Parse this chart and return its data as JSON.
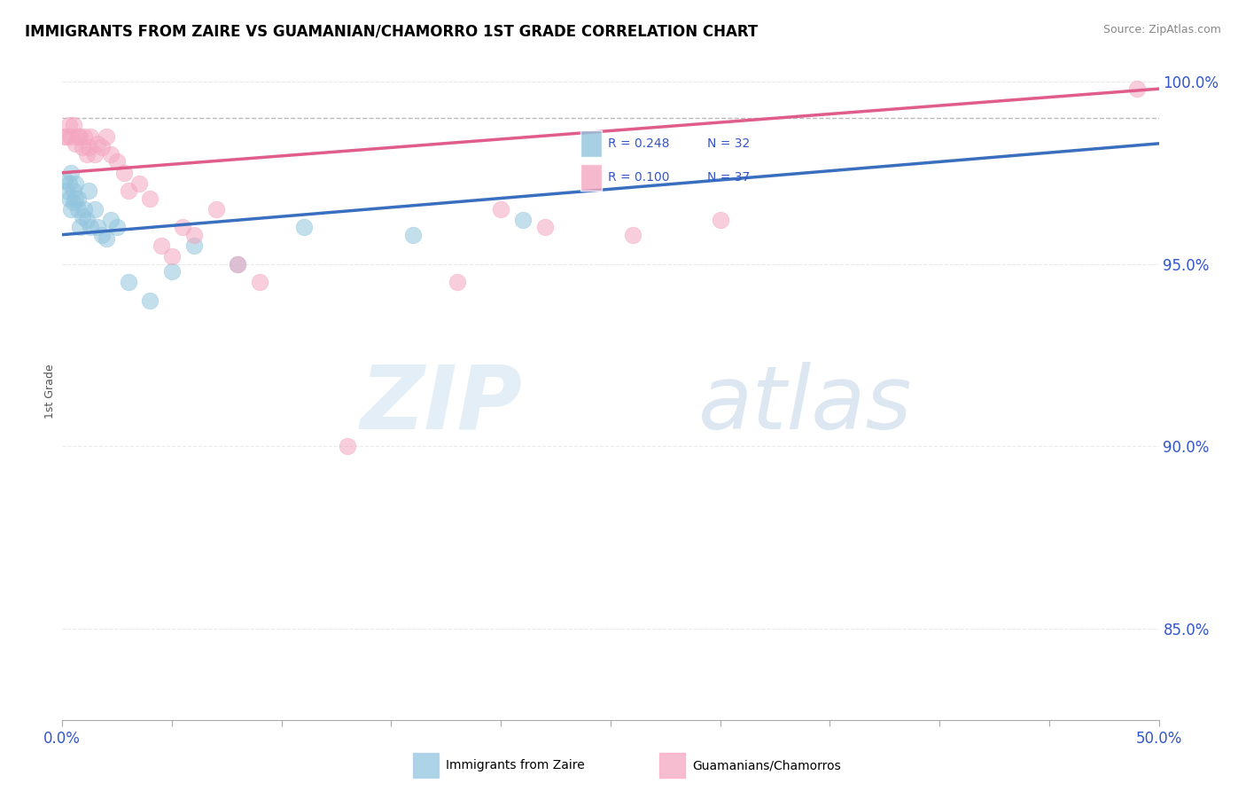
{
  "title": "IMMIGRANTS FROM ZAIRE VS GUAMANIAN/CHAMORRO 1ST GRADE CORRELATION CHART",
  "source_text": "Source: ZipAtlas.com",
  "ylabel": "1st Grade",
  "xlim": [
    0.0,
    0.5
  ],
  "ylim": [
    0.825,
    1.005
  ],
  "xticks": [
    0.0,
    0.05,
    0.1,
    0.15,
    0.2,
    0.25,
    0.3,
    0.35,
    0.4,
    0.45,
    0.5
  ],
  "xticklabels": [
    "0.0%",
    "",
    "",
    "",
    "",
    "",
    "",
    "",
    "",
    "",
    "50.0%"
  ],
  "yticks": [
    0.85,
    0.9,
    0.95,
    1.0
  ],
  "yticklabels": [
    "85.0%",
    "90.0%",
    "95.0%",
    "100.0%"
  ],
  "blue_color": "#92c5de",
  "pink_color": "#f4a6c0",
  "blue_line_color": "#3a6fbf",
  "pink_line_color": "#e05c8a",
  "R_blue": 0.248,
  "N_blue": 32,
  "R_pink": 0.1,
  "N_pink": 37,
  "legend_label_blue": "Immigrants from Zaire",
  "legend_label_pink": "Guamanians/Chamorros",
  "watermark_zip": "ZIP",
  "watermark_atlas": "atlas",
  "dashed_line_y": 0.99,
  "blue_scatter_x": [
    0.001,
    0.002,
    0.003,
    0.003,
    0.004,
    0.004,
    0.005,
    0.005,
    0.006,
    0.006,
    0.007,
    0.007,
    0.008,
    0.009,
    0.01,
    0.011,
    0.012,
    0.013,
    0.015,
    0.016,
    0.018,
    0.02,
    0.022,
    0.025,
    0.03,
    0.04,
    0.05,
    0.06,
    0.08,
    0.11,
    0.16,
    0.21
  ],
  "blue_scatter_y": [
    0.973,
    0.97,
    0.972,
    0.968,
    0.975,
    0.965,
    0.97,
    0.967,
    0.972,
    0.968,
    0.965,
    0.968,
    0.96,
    0.963,
    0.965,
    0.962,
    0.97,
    0.96,
    0.965,
    0.96,
    0.958,
    0.957,
    0.962,
    0.96,
    0.945,
    0.94,
    0.948,
    0.955,
    0.95,
    0.96,
    0.958,
    0.962
  ],
  "pink_scatter_x": [
    0.001,
    0.002,
    0.003,
    0.004,
    0.005,
    0.006,
    0.007,
    0.008,
    0.009,
    0.01,
    0.011,
    0.012,
    0.013,
    0.015,
    0.016,
    0.018,
    0.02,
    0.022,
    0.025,
    0.028,
    0.03,
    0.035,
    0.04,
    0.045,
    0.05,
    0.055,
    0.06,
    0.07,
    0.08,
    0.09,
    0.13,
    0.18,
    0.2,
    0.22,
    0.26,
    0.3,
    0.49
  ],
  "pink_scatter_y": [
    0.985,
    0.985,
    0.988,
    0.985,
    0.988,
    0.983,
    0.985,
    0.985,
    0.982,
    0.985,
    0.98,
    0.982,
    0.985,
    0.98,
    0.983,
    0.982,
    0.985,
    0.98,
    0.978,
    0.975,
    0.97,
    0.972,
    0.968,
    0.955,
    0.952,
    0.96,
    0.958,
    0.965,
    0.95,
    0.945,
    0.9,
    0.945,
    0.965,
    0.96,
    0.958,
    0.962,
    0.998
  ]
}
